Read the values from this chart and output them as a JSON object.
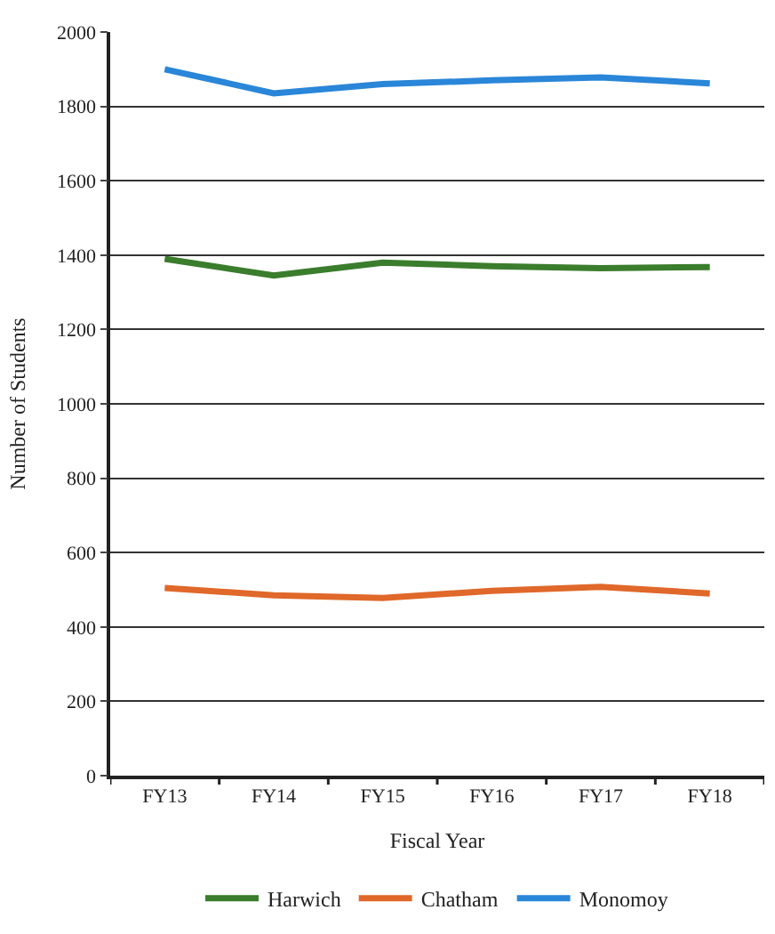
{
  "chart_data": {
    "type": "line",
    "xlabel": "Fiscal Year",
    "ylabel": "Number of Students",
    "categories": [
      "FY13",
      "FY14",
      "FY15",
      "FY16",
      "FY17",
      "FY18"
    ],
    "series": [
      {
        "name": "Harwich",
        "color": "#3a7d2c",
        "values": [
          1390,
          1345,
          1380,
          1370,
          1365,
          1368
        ]
      },
      {
        "name": "Chatham",
        "color": "#e0682a",
        "values": [
          505,
          485,
          478,
          497,
          508,
          490
        ]
      },
      {
        "name": "Monomoy",
        "color": "#2a86d8",
        "values": [
          1900,
          1835,
          1860,
          1870,
          1878,
          1862
        ]
      }
    ],
    "ylim": [
      0,
      2000
    ],
    "yticks": [
      0,
      200,
      400,
      600,
      800,
      1000,
      1200,
      1400,
      1600,
      1800,
      2000
    ],
    "grid": "y",
    "legend": "bottom",
    "marker": "none",
    "line_style": "solid"
  }
}
